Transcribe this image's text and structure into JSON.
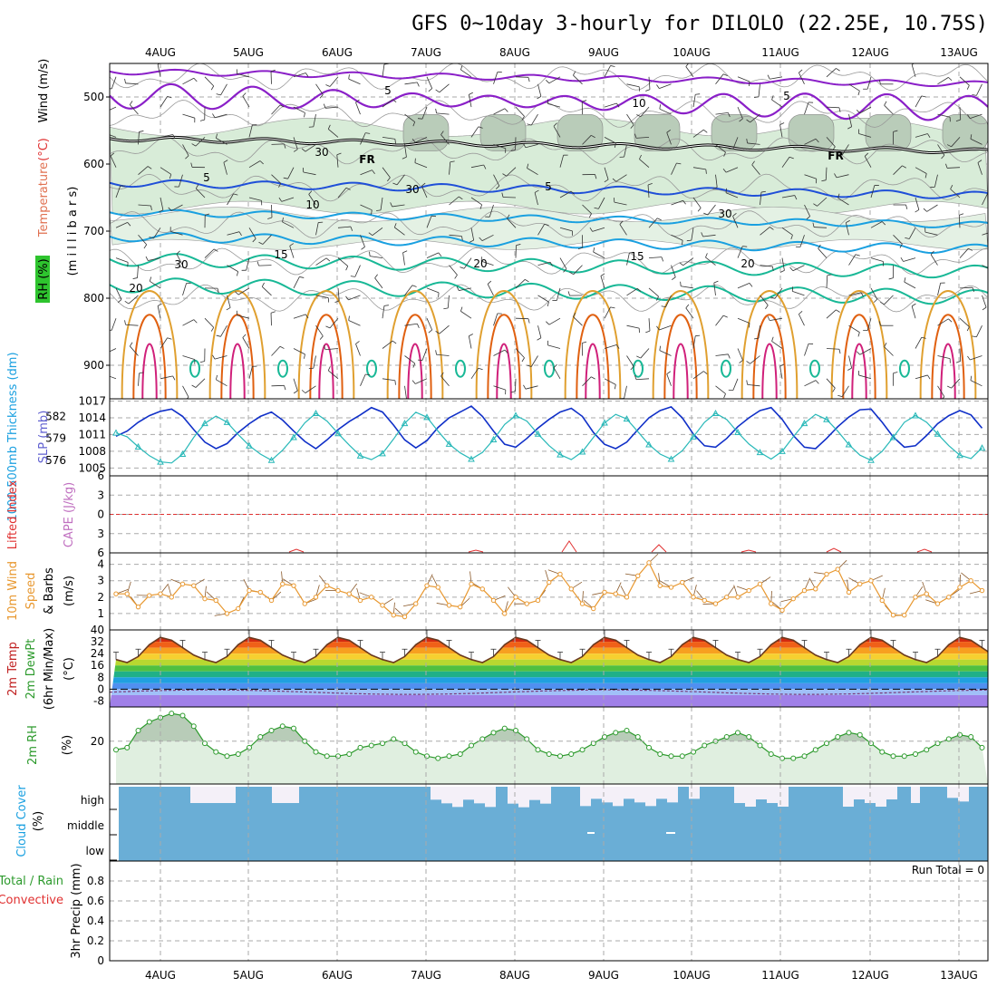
{
  "title": "GFS 0~10day 3-hourly for DILOLO (22.25E, 10.75S)",
  "run_total_label": "Run Total = 0",
  "date_labels": [
    "4AUG",
    "5AUG",
    "6AUG",
    "7AUG",
    "8AUG",
    "9AUG",
    "10AUG",
    "11AUG",
    "12AUG",
    "13AUG"
  ],
  "colors": {
    "purple": "#8a1fc8",
    "blue1": "#1f4fd8",
    "blue2": "#1aa0e0",
    "teal": "#18b896",
    "orange": "#e0a030",
    "red": "#e06010",
    "magenta": "#d0207a",
    "rhfill": "#d8ecd8",
    "thick": "#1030c8",
    "slp": "#28b8b8",
    "wind10": "#e89830",
    "cloud": "#6aaed6",
    "rh2m": "#2c9a2c"
  },
  "chart_data": [
    {
      "type": "contour",
      "name": "upper-air",
      "ylabel_parts": [
        "RH (%)",
        "Temperature",
        "(°C)",
        "Wind (m/s)"
      ],
      "axis_title": "(m i l l i b a r s)",
      "yticks": [
        500,
        600,
        700,
        800,
        900
      ],
      "ylim": [
        450,
        950
      ],
      "contour_labels": [
        "5",
        "5",
        "10",
        "15",
        "20",
        "15",
        "20",
        "20",
        "5",
        "FR",
        "FR",
        "10",
        "30",
        "30",
        "30",
        "30"
      ]
    },
    {
      "type": "line",
      "name": "thickness-slp",
      "ylabel_left": "1000-500mb Thickness (dm)",
      "ylabel_right": "SLP (mb)",
      "yticks_left": [
        576,
        579,
        582
      ],
      "yticks_right": [
        1005,
        1008,
        1011,
        1014,
        1017
      ],
      "series": [
        {
          "name": "Thickness",
          "values": [
            579.3,
            580.0,
            581.2,
            582.1,
            582.7,
            583.0,
            582.0,
            580.2,
            578.5,
            577.6,
            578.3,
            579.8,
            581.0,
            582.0,
            582.6,
            581.5,
            580.0,
            578.6,
            577.6,
            578.8,
            580.2,
            581.3,
            582.2,
            583.2,
            582.6,
            580.8,
            578.8,
            577.7,
            578.7,
            580.5,
            581.8,
            582.6,
            583.4,
            582.0,
            580.0,
            578.2,
            577.8,
            579.0,
            580.4,
            581.6,
            582.6,
            583.1,
            582.0,
            579.8,
            578.2,
            577.6,
            578.5,
            580.2,
            581.8,
            582.8,
            583.3,
            581.8,
            579.6,
            578.0,
            577.8,
            579.0,
            580.6,
            581.8,
            582.8,
            583.2,
            581.6,
            579.4,
            577.8,
            577.6,
            579.0,
            580.6,
            581.9,
            582.9,
            583.0,
            581.2,
            579.2,
            577.8,
            578.0,
            579.4,
            581.0,
            582.1,
            582.8,
            582.2,
            580.4,
            578.6,
            577.6,
            578.4,
            580.0,
            581.6,
            582.6,
            583.0,
            581.2,
            579.2,
            578.2
          ]
        },
        {
          "name": "SLP",
          "values": [
            1011.3,
            1010.6,
            1008.8,
            1007.2,
            1006.1,
            1005.9,
            1007.5,
            1010.5,
            1013.0,
            1014.3,
            1013.2,
            1011.0,
            1009.0,
            1007.5,
            1006.4,
            1008.2,
            1010.5,
            1013.1,
            1014.8,
            1013.4,
            1011.2,
            1009.1,
            1007.2,
            1006.5,
            1007.6,
            1010.2,
            1013.0,
            1015.0,
            1014.1,
            1011.6,
            1009.3,
            1007.7,
            1006.6,
            1007.8,
            1010.1,
            1012.8,
            1014.4,
            1013.4,
            1011.1,
            1009.0,
            1007.4,
            1006.5,
            1007.9,
            1010.5,
            1013.1,
            1014.6,
            1013.8,
            1011.5,
            1009.2,
            1007.5,
            1006.6,
            1008.1,
            1010.6,
            1013.2,
            1014.8,
            1013.7,
            1011.4,
            1009.3,
            1007.8,
            1006.6,
            1008.0,
            1010.6,
            1013.0,
            1014.6,
            1013.7,
            1011.6,
            1009.2,
            1007.3,
            1006.4,
            1008.0,
            1010.5,
            1013.2,
            1014.4,
            1013.2,
            1011.1,
            1009.0,
            1007.3,
            1006.7,
            1008.6,
            1010.8,
            1012.9,
            1014.2,
            1013.0,
            1010.6,
            1008.5,
            1007.0,
            1006.0,
            1005.3,
            1004.9
          ]
        }
      ]
    },
    {
      "type": "line",
      "name": "lifted-index-cape",
      "ylabel_left": "Lifted Index",
      "ylabel_right": "CAPE (J/kg)",
      "yticks": [
        -6,
        -3,
        0,
        3,
        6
      ],
      "ylim": [
        -6,
        6
      ]
    },
    {
      "type": "line",
      "name": "wind10m",
      "ylabel_parts": [
        "10m Wind",
        "Speed",
        "& Barbs",
        "(m/s)"
      ],
      "yticks": [
        1,
        2,
        3,
        4
      ],
      "ylim": [
        0,
        4.7
      ],
      "series": [
        {
          "name": "10m Wind Speed",
          "values": [
            2.2,
            2.2,
            1.4,
            2.1,
            2.2,
            2.0,
            2.8,
            2.7,
            1.9,
            1.8,
            1.0,
            1.3,
            2.4,
            2.3,
            1.8,
            2.8,
            2.7,
            1.6,
            2.0,
            2.7,
            2.4,
            2.2,
            1.8,
            2.0,
            1.5,
            0.9,
            0.8,
            1.6,
            2.7,
            2.6,
            1.5,
            1.4,
            2.8,
            2.5,
            1.8,
            1.0,
            2.0,
            1.6,
            1.8,
            2.9,
            3.4,
            2.5,
            1.6,
            1.3,
            2.3,
            2.2,
            2.0,
            3.3,
            4.1,
            2.7,
            2.6,
            2.9,
            2.0,
            1.8,
            1.6,
            2.0,
            2.0,
            2.4,
            2.8,
            1.6,
            1.2,
            1.9,
            2.4,
            2.5,
            3.4,
            3.7,
            2.3,
            2.8,
            3.0,
            1.8,
            0.9,
            0.9,
            2.0,
            2.2,
            1.6,
            2.0,
            2.6,
            3.0,
            2.4,
            1.6,
            1.3,
            2.0,
            2.1,
            2.7,
            4.4,
            2.6,
            2.0,
            2.2,
            2.2,
            1.6,
            2.2,
            1.6,
            3.0
          ]
        }
      ]
    },
    {
      "type": "area",
      "name": "temp-dewpt",
      "ylabel_parts": [
        "2m Temp",
        "2m DewPt",
        "(6hr Min/Max)",
        "(°C)"
      ],
      "yticks": [
        -8,
        0,
        8,
        16,
        24,
        32,
        40
      ],
      "ylim": [
        -12,
        40
      ]
    },
    {
      "type": "area",
      "name": "rh2m",
      "ylabel_parts": [
        "2m RH",
        "(%)"
      ],
      "yticks": [
        20
      ],
      "series": [
        {
          "name": "2m RH",
          "values": [
            16,
            17,
            25,
            29,
            31,
            33,
            32,
            27,
            19,
            15,
            13,
            14,
            17,
            22,
            25,
            27,
            26,
            20,
            15,
            13,
            13,
            14,
            17,
            18,
            19,
            21,
            19,
            15,
            13,
            12,
            13,
            14,
            18,
            21,
            24,
            26,
            25,
            21,
            16,
            14,
            13,
            14,
            16,
            19,
            22,
            24,
            25,
            22,
            17,
            14,
            13,
            13,
            15,
            18,
            20,
            22,
            24,
            22,
            18,
            14,
            12,
            12,
            13,
            16,
            19,
            22,
            24,
            23,
            19,
            15,
            13,
            13,
            14,
            16,
            19,
            21,
            23,
            22,
            17,
            14,
            12,
            12,
            13,
            15,
            17,
            19,
            21,
            22,
            18,
            14,
            12,
            12,
            13,
            15,
            18,
            21,
            24,
            27,
            28
          ]
        }
      ]
    },
    {
      "type": "bar",
      "name": "cloud-cover",
      "ylabel_parts": [
        "Cloud Cover",
        "(%)"
      ],
      "level_labels": [
        "high",
        "middle",
        "low"
      ]
    },
    {
      "type": "bar",
      "name": "precip",
      "ylabel_parts": [
        "Total / Rain",
        "Convective",
        "3hr Precip (mm)"
      ],
      "yticks": [
        0,
        0.2,
        0.4,
        0.6,
        0.8
      ],
      "ylim": [
        0,
        1.0
      ]
    }
  ]
}
